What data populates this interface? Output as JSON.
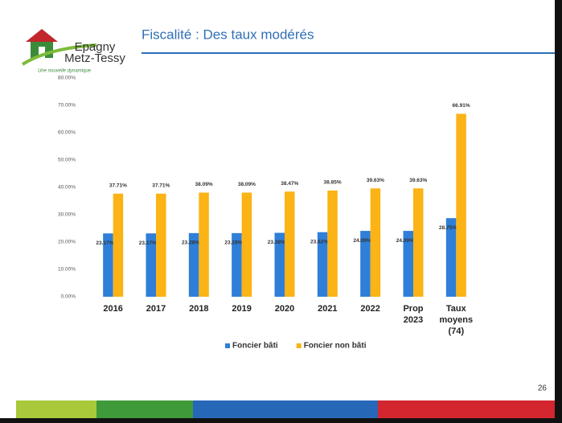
{
  "logo": {
    "line1": "Epagny",
    "line2": "Metz-Tessy",
    "tagline": "Une nouvelle dynamique"
  },
  "page_number": "26",
  "chart_data": {
    "type": "bar",
    "title": "Fiscalité : Des taux modérés",
    "categories": [
      "2016",
      "2017",
      "2018",
      "2019",
      "2020",
      "2021",
      "2022",
      "Prop 2023",
      "Taux moyens (74)"
    ],
    "series": [
      {
        "name": "Foncier bâti",
        "color": "#2f7fd8",
        "values": [
          23.17,
          23.17,
          23.28,
          23.28,
          23.38,
          23.62,
          24.09,
          24.09,
          28.75
        ],
        "value_labels": [
          "23.17%",
          "23.17%",
          "23.28%",
          "23.28%",
          "23.38%",
          "23.62%",
          "24.09%",
          "24.09%",
          "28.75%"
        ]
      },
      {
        "name": "Foncier non bâti",
        "color": "#fbb315",
        "values": [
          37.71,
          37.71,
          38.09,
          38.09,
          38.47,
          38.85,
          39.63,
          39.63,
          66.91
        ],
        "value_labels": [
          "37.71%",
          "37.71%",
          "38.09%",
          "38.09%",
          "38.47%",
          "38.85%",
          "39.63%",
          "39.63%",
          "66.91%"
        ]
      }
    ],
    "ylim": [
      0,
      80
    ],
    "yticks": [
      {
        "value": 0,
        "label": "0.00%"
      },
      {
        "value": 10,
        "label": "10.00%"
      },
      {
        "value": 20,
        "label": "20.00%"
      },
      {
        "value": 30,
        "label": "30.00%"
      },
      {
        "value": 40,
        "label": "40.00%"
      },
      {
        "value": 50,
        "label": "50.00%"
      },
      {
        "value": 60,
        "label": "60.00%"
      },
      {
        "value": 70,
        "label": "70.00%"
      },
      {
        "value": 80,
        "label": "80.00%"
      }
    ],
    "legend": "bottom",
    "grid": false
  }
}
